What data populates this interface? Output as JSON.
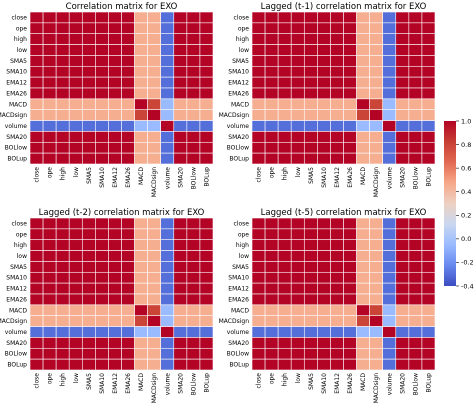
{
  "figure": {
    "colormap": "coolwarm",
    "colors": {
      "low": "#3b4cc0",
      "mid": "#dddddd",
      "high": "#b40426"
    },
    "colorbar": {
      "ticks": [
        "1.0",
        "0.8",
        "0.6",
        "0.4",
        "0.2",
        "0.0",
        "-0.2",
        "-0.4"
      ],
      "range": [
        -0.4,
        1.0
      ]
    }
  },
  "chart_data": [
    {
      "type": "heatmap",
      "title": "Correlation matrix for EXO",
      "x_labels": [
        "close",
        "ope",
        "high",
        "low",
        "SMA5",
        "SMA10",
        "EMA12",
        "EMA26",
        "MACD",
        "MACDsign",
        "volume",
        "SMA20",
        "BOLlow",
        "BOLup"
      ],
      "y_labels": [
        "close",
        "ope",
        "high",
        "low",
        "SMA5",
        "SMA10",
        "EMA12",
        "EMA26",
        "MACD",
        "MACDsign",
        "volume",
        "SMA20",
        "BOLlow",
        "BOLup"
      ],
      "values": [
        [
          1.0,
          1.0,
          1.0,
          1.0,
          1.0,
          1.0,
          1.0,
          1.0,
          0.45,
          0.45,
          -0.3,
          1.0,
          1.0,
          1.0
        ],
        [
          1.0,
          1.0,
          1.0,
          1.0,
          1.0,
          1.0,
          1.0,
          1.0,
          0.45,
          0.45,
          -0.3,
          1.0,
          1.0,
          1.0
        ],
        [
          1.0,
          1.0,
          1.0,
          1.0,
          1.0,
          1.0,
          1.0,
          1.0,
          0.45,
          0.45,
          -0.3,
          1.0,
          1.0,
          1.0
        ],
        [
          1.0,
          1.0,
          1.0,
          1.0,
          1.0,
          1.0,
          1.0,
          1.0,
          0.45,
          0.45,
          -0.3,
          1.0,
          1.0,
          1.0
        ],
        [
          1.0,
          1.0,
          1.0,
          1.0,
          1.0,
          1.0,
          1.0,
          1.0,
          0.45,
          0.45,
          -0.3,
          1.0,
          1.0,
          1.0
        ],
        [
          1.0,
          1.0,
          1.0,
          1.0,
          1.0,
          1.0,
          1.0,
          1.0,
          0.45,
          0.45,
          -0.3,
          1.0,
          1.0,
          1.0
        ],
        [
          1.0,
          1.0,
          1.0,
          1.0,
          1.0,
          1.0,
          1.0,
          1.0,
          0.45,
          0.45,
          -0.3,
          1.0,
          1.0,
          1.0
        ],
        [
          1.0,
          1.0,
          1.0,
          1.0,
          1.0,
          1.0,
          1.0,
          1.0,
          0.45,
          0.45,
          -0.3,
          1.0,
          1.0,
          1.0
        ],
        [
          0.45,
          0.45,
          0.45,
          0.45,
          0.45,
          0.45,
          0.45,
          0.45,
          1.0,
          0.8,
          -0.05,
          0.45,
          0.45,
          0.45
        ],
        [
          0.45,
          0.45,
          0.45,
          0.45,
          0.45,
          0.45,
          0.45,
          0.45,
          0.8,
          1.0,
          -0.05,
          0.45,
          0.45,
          0.45
        ],
        [
          -0.3,
          -0.3,
          -0.3,
          -0.3,
          -0.3,
          -0.3,
          -0.3,
          -0.3,
          -0.05,
          -0.05,
          1.0,
          -0.3,
          -0.3,
          -0.3
        ],
        [
          1.0,
          1.0,
          1.0,
          1.0,
          1.0,
          1.0,
          1.0,
          1.0,
          0.45,
          0.45,
          -0.3,
          1.0,
          1.0,
          1.0
        ],
        [
          1.0,
          1.0,
          1.0,
          1.0,
          1.0,
          1.0,
          1.0,
          1.0,
          0.45,
          0.45,
          -0.3,
          1.0,
          1.0,
          1.0
        ],
        [
          1.0,
          1.0,
          1.0,
          1.0,
          1.0,
          1.0,
          1.0,
          1.0,
          0.45,
          0.45,
          -0.3,
          1.0,
          1.0,
          1.0
        ]
      ]
    },
    {
      "type": "heatmap",
      "title": "Lagged (t-1) correlation matrix for EXO",
      "x_labels": [
        "close",
        "ope",
        "high",
        "low",
        "SMA5",
        "SMA10",
        "EMA12",
        "EMA26",
        "MACD",
        "MACDsign",
        "volume",
        "SMA20",
        "BOLlow",
        "BOLup"
      ],
      "y_labels": [
        "close",
        "ope",
        "high",
        "low",
        "SMA5",
        "SMA10",
        "EMA12",
        "EMA26",
        "MACD",
        "MACDsign",
        "volume",
        "SMA20",
        "BOLlow",
        "BOLup"
      ],
      "values": [
        [
          1.0,
          1.0,
          1.0,
          1.0,
          1.0,
          1.0,
          1.0,
          1.0,
          0.45,
          0.45,
          -0.3,
          1.0,
          1.0,
          1.0
        ],
        [
          1.0,
          1.0,
          1.0,
          1.0,
          1.0,
          1.0,
          1.0,
          1.0,
          0.45,
          0.45,
          -0.3,
          1.0,
          1.0,
          1.0
        ],
        [
          1.0,
          1.0,
          1.0,
          1.0,
          1.0,
          1.0,
          1.0,
          1.0,
          0.45,
          0.45,
          -0.3,
          1.0,
          1.0,
          1.0
        ],
        [
          1.0,
          1.0,
          1.0,
          1.0,
          1.0,
          1.0,
          1.0,
          1.0,
          0.45,
          0.45,
          -0.3,
          1.0,
          1.0,
          1.0
        ],
        [
          1.0,
          1.0,
          1.0,
          1.0,
          1.0,
          1.0,
          1.0,
          1.0,
          0.45,
          0.45,
          -0.3,
          1.0,
          1.0,
          1.0
        ],
        [
          1.0,
          1.0,
          1.0,
          1.0,
          1.0,
          1.0,
          1.0,
          1.0,
          0.45,
          0.45,
          -0.3,
          1.0,
          1.0,
          1.0
        ],
        [
          1.0,
          1.0,
          1.0,
          1.0,
          1.0,
          1.0,
          1.0,
          1.0,
          0.45,
          0.45,
          -0.3,
          1.0,
          1.0,
          1.0
        ],
        [
          1.0,
          1.0,
          1.0,
          1.0,
          1.0,
          1.0,
          1.0,
          1.0,
          0.45,
          0.45,
          -0.3,
          1.0,
          1.0,
          1.0
        ],
        [
          0.45,
          0.45,
          0.45,
          0.45,
          0.45,
          0.45,
          0.45,
          0.45,
          1.0,
          0.8,
          -0.05,
          0.45,
          0.45,
          0.45
        ],
        [
          0.45,
          0.45,
          0.45,
          0.45,
          0.45,
          0.45,
          0.45,
          0.45,
          0.8,
          1.0,
          -0.05,
          0.45,
          0.45,
          0.45
        ],
        [
          -0.3,
          -0.3,
          -0.3,
          -0.3,
          -0.3,
          -0.3,
          -0.3,
          -0.3,
          -0.05,
          -0.05,
          1.0,
          -0.3,
          -0.3,
          -0.3
        ],
        [
          1.0,
          1.0,
          1.0,
          1.0,
          1.0,
          1.0,
          1.0,
          1.0,
          0.45,
          0.45,
          -0.3,
          1.0,
          1.0,
          1.0
        ],
        [
          1.0,
          1.0,
          1.0,
          1.0,
          1.0,
          1.0,
          1.0,
          1.0,
          0.45,
          0.45,
          -0.3,
          1.0,
          1.0,
          1.0
        ],
        [
          1.0,
          1.0,
          1.0,
          1.0,
          1.0,
          1.0,
          1.0,
          1.0,
          0.45,
          0.45,
          -0.3,
          1.0,
          1.0,
          1.0
        ]
      ]
    },
    {
      "type": "heatmap",
      "title": "Lagged (t-2) correlation matrix for EXO",
      "x_labels": [
        "close",
        "ope",
        "high",
        "low",
        "SMA5",
        "SMA10",
        "EMA12",
        "EMA26",
        "MACD",
        "MACDsign",
        "volume",
        "SMA20",
        "BOLlow",
        "BOLup"
      ],
      "y_labels": [
        "close",
        "ope",
        "high",
        "low",
        "SMA5",
        "SMA10",
        "EMA12",
        "EMA26",
        "MACD",
        "MACDsign",
        "volume",
        "SMA20",
        "BOLlow",
        "BOLup"
      ],
      "values": [
        [
          1.0,
          1.0,
          1.0,
          1.0,
          1.0,
          1.0,
          1.0,
          1.0,
          0.45,
          0.45,
          -0.3,
          1.0,
          1.0,
          1.0
        ],
        [
          1.0,
          1.0,
          1.0,
          1.0,
          1.0,
          1.0,
          1.0,
          1.0,
          0.45,
          0.45,
          -0.3,
          1.0,
          1.0,
          1.0
        ],
        [
          1.0,
          1.0,
          1.0,
          1.0,
          1.0,
          1.0,
          1.0,
          1.0,
          0.45,
          0.45,
          -0.3,
          1.0,
          1.0,
          1.0
        ],
        [
          1.0,
          1.0,
          1.0,
          1.0,
          1.0,
          1.0,
          1.0,
          1.0,
          0.45,
          0.45,
          -0.3,
          1.0,
          1.0,
          1.0
        ],
        [
          1.0,
          1.0,
          1.0,
          1.0,
          1.0,
          1.0,
          1.0,
          1.0,
          0.45,
          0.45,
          -0.3,
          1.0,
          1.0,
          1.0
        ],
        [
          1.0,
          1.0,
          1.0,
          1.0,
          1.0,
          1.0,
          1.0,
          1.0,
          0.45,
          0.45,
          -0.3,
          1.0,
          1.0,
          1.0
        ],
        [
          1.0,
          1.0,
          1.0,
          1.0,
          1.0,
          1.0,
          1.0,
          1.0,
          0.45,
          0.45,
          -0.3,
          1.0,
          1.0,
          1.0
        ],
        [
          1.0,
          1.0,
          1.0,
          1.0,
          1.0,
          1.0,
          1.0,
          1.0,
          0.45,
          0.45,
          -0.3,
          1.0,
          1.0,
          1.0
        ],
        [
          0.45,
          0.45,
          0.45,
          0.45,
          0.45,
          0.45,
          0.45,
          0.45,
          1.0,
          0.8,
          -0.05,
          0.45,
          0.45,
          0.45
        ],
        [
          0.45,
          0.45,
          0.45,
          0.45,
          0.45,
          0.45,
          0.45,
          0.45,
          0.8,
          1.0,
          -0.05,
          0.45,
          0.45,
          0.45
        ],
        [
          -0.3,
          -0.3,
          -0.3,
          -0.3,
          -0.3,
          -0.3,
          -0.3,
          -0.3,
          -0.05,
          -0.05,
          1.0,
          -0.3,
          -0.3,
          -0.3
        ],
        [
          1.0,
          1.0,
          1.0,
          1.0,
          1.0,
          1.0,
          1.0,
          1.0,
          0.45,
          0.45,
          -0.3,
          1.0,
          1.0,
          1.0
        ],
        [
          1.0,
          1.0,
          1.0,
          1.0,
          1.0,
          1.0,
          1.0,
          1.0,
          0.45,
          0.45,
          -0.3,
          1.0,
          1.0,
          1.0
        ],
        [
          1.0,
          1.0,
          1.0,
          1.0,
          1.0,
          1.0,
          1.0,
          1.0,
          0.45,
          0.45,
          -0.3,
          1.0,
          1.0,
          1.0
        ]
      ]
    },
    {
      "type": "heatmap",
      "title": "Lagged (t-5) correlation matrix for EXO",
      "x_labels": [
        "close",
        "ope",
        "high",
        "low",
        "SMA5",
        "SMA10",
        "EMA12",
        "EMA26",
        "MACD",
        "MACDsign",
        "volume",
        "SMA20",
        "BOLlow",
        "BOLup"
      ],
      "y_labels": [
        "close",
        "ope",
        "high",
        "low",
        "SMA5",
        "SMA10",
        "EMA12",
        "EMA26",
        "MACD",
        "MACDsign",
        "volume",
        "SMA20",
        "BOLlow",
        "BOLup"
      ],
      "values": [
        [
          1.0,
          1.0,
          1.0,
          1.0,
          1.0,
          1.0,
          1.0,
          1.0,
          0.45,
          0.45,
          -0.3,
          1.0,
          1.0,
          1.0
        ],
        [
          1.0,
          1.0,
          1.0,
          1.0,
          1.0,
          1.0,
          1.0,
          1.0,
          0.45,
          0.45,
          -0.3,
          1.0,
          1.0,
          1.0
        ],
        [
          1.0,
          1.0,
          1.0,
          1.0,
          1.0,
          1.0,
          1.0,
          1.0,
          0.45,
          0.45,
          -0.3,
          1.0,
          1.0,
          1.0
        ],
        [
          1.0,
          1.0,
          1.0,
          1.0,
          1.0,
          1.0,
          1.0,
          1.0,
          0.45,
          0.45,
          -0.3,
          1.0,
          1.0,
          1.0
        ],
        [
          1.0,
          1.0,
          1.0,
          1.0,
          1.0,
          1.0,
          1.0,
          1.0,
          0.45,
          0.45,
          -0.3,
          1.0,
          1.0,
          1.0
        ],
        [
          1.0,
          1.0,
          1.0,
          1.0,
          1.0,
          1.0,
          1.0,
          1.0,
          0.45,
          0.45,
          -0.3,
          1.0,
          1.0,
          1.0
        ],
        [
          1.0,
          1.0,
          1.0,
          1.0,
          1.0,
          1.0,
          1.0,
          1.0,
          0.45,
          0.45,
          -0.3,
          1.0,
          1.0,
          1.0
        ],
        [
          1.0,
          1.0,
          1.0,
          1.0,
          1.0,
          1.0,
          1.0,
          1.0,
          0.45,
          0.45,
          -0.3,
          1.0,
          1.0,
          1.0
        ],
        [
          0.45,
          0.45,
          0.45,
          0.45,
          0.45,
          0.45,
          0.45,
          0.45,
          1.0,
          0.8,
          -0.05,
          0.45,
          0.45,
          0.45
        ],
        [
          0.45,
          0.45,
          0.45,
          0.45,
          0.45,
          0.45,
          0.45,
          0.45,
          0.8,
          1.0,
          -0.05,
          0.45,
          0.45,
          0.45
        ],
        [
          -0.3,
          -0.3,
          -0.3,
          -0.3,
          -0.3,
          -0.3,
          -0.3,
          -0.3,
          -0.05,
          -0.05,
          1.0,
          -0.3,
          -0.3,
          -0.3
        ],
        [
          1.0,
          1.0,
          1.0,
          1.0,
          1.0,
          1.0,
          1.0,
          1.0,
          0.45,
          0.45,
          -0.3,
          1.0,
          1.0,
          1.0
        ],
        [
          1.0,
          1.0,
          1.0,
          1.0,
          1.0,
          1.0,
          1.0,
          1.0,
          0.45,
          0.45,
          -0.3,
          1.0,
          1.0,
          1.0
        ],
        [
          1.0,
          1.0,
          1.0,
          1.0,
          1.0,
          1.0,
          1.0,
          1.0,
          0.45,
          0.45,
          -0.3,
          1.0,
          1.0,
          1.0
        ]
      ]
    }
  ]
}
